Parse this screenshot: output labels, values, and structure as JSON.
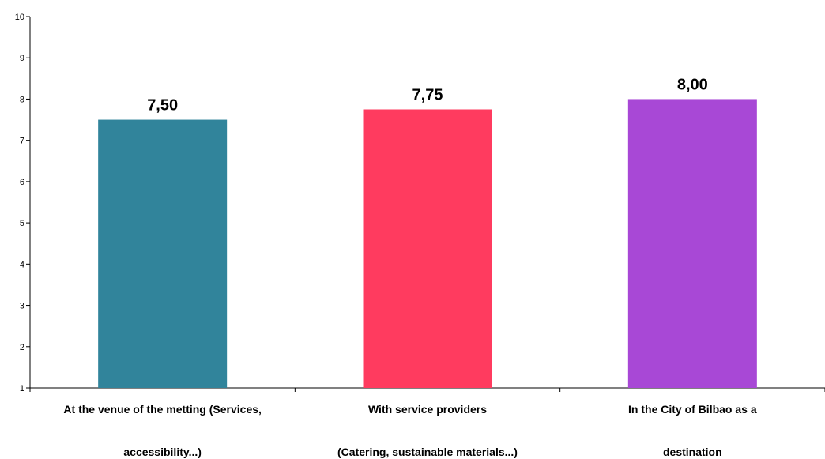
{
  "chart_data": {
    "type": "bar",
    "categories": [
      {
        "line1": "At the venue of the metting (Services,",
        "line2": "accessibility...)"
      },
      {
        "line1": "With service providers",
        "line2": "(Catering, sustainable materials...)"
      },
      {
        "line1": "In the City of Bilbao as a",
        "line2": "destination"
      }
    ],
    "values": [
      7.5,
      7.75,
      8.0
    ],
    "data_labels": [
      "7,50",
      "7,75",
      "8,00"
    ],
    "colors": [
      "#31849B",
      "#FF3B5F",
      "#A848D6"
    ],
    "ylim": [
      1,
      10
    ],
    "yticks": [
      "1",
      "2",
      "3",
      "4",
      "5",
      "6",
      "7",
      "8",
      "9",
      "10"
    ],
    "grid": false,
    "legend": "none"
  }
}
